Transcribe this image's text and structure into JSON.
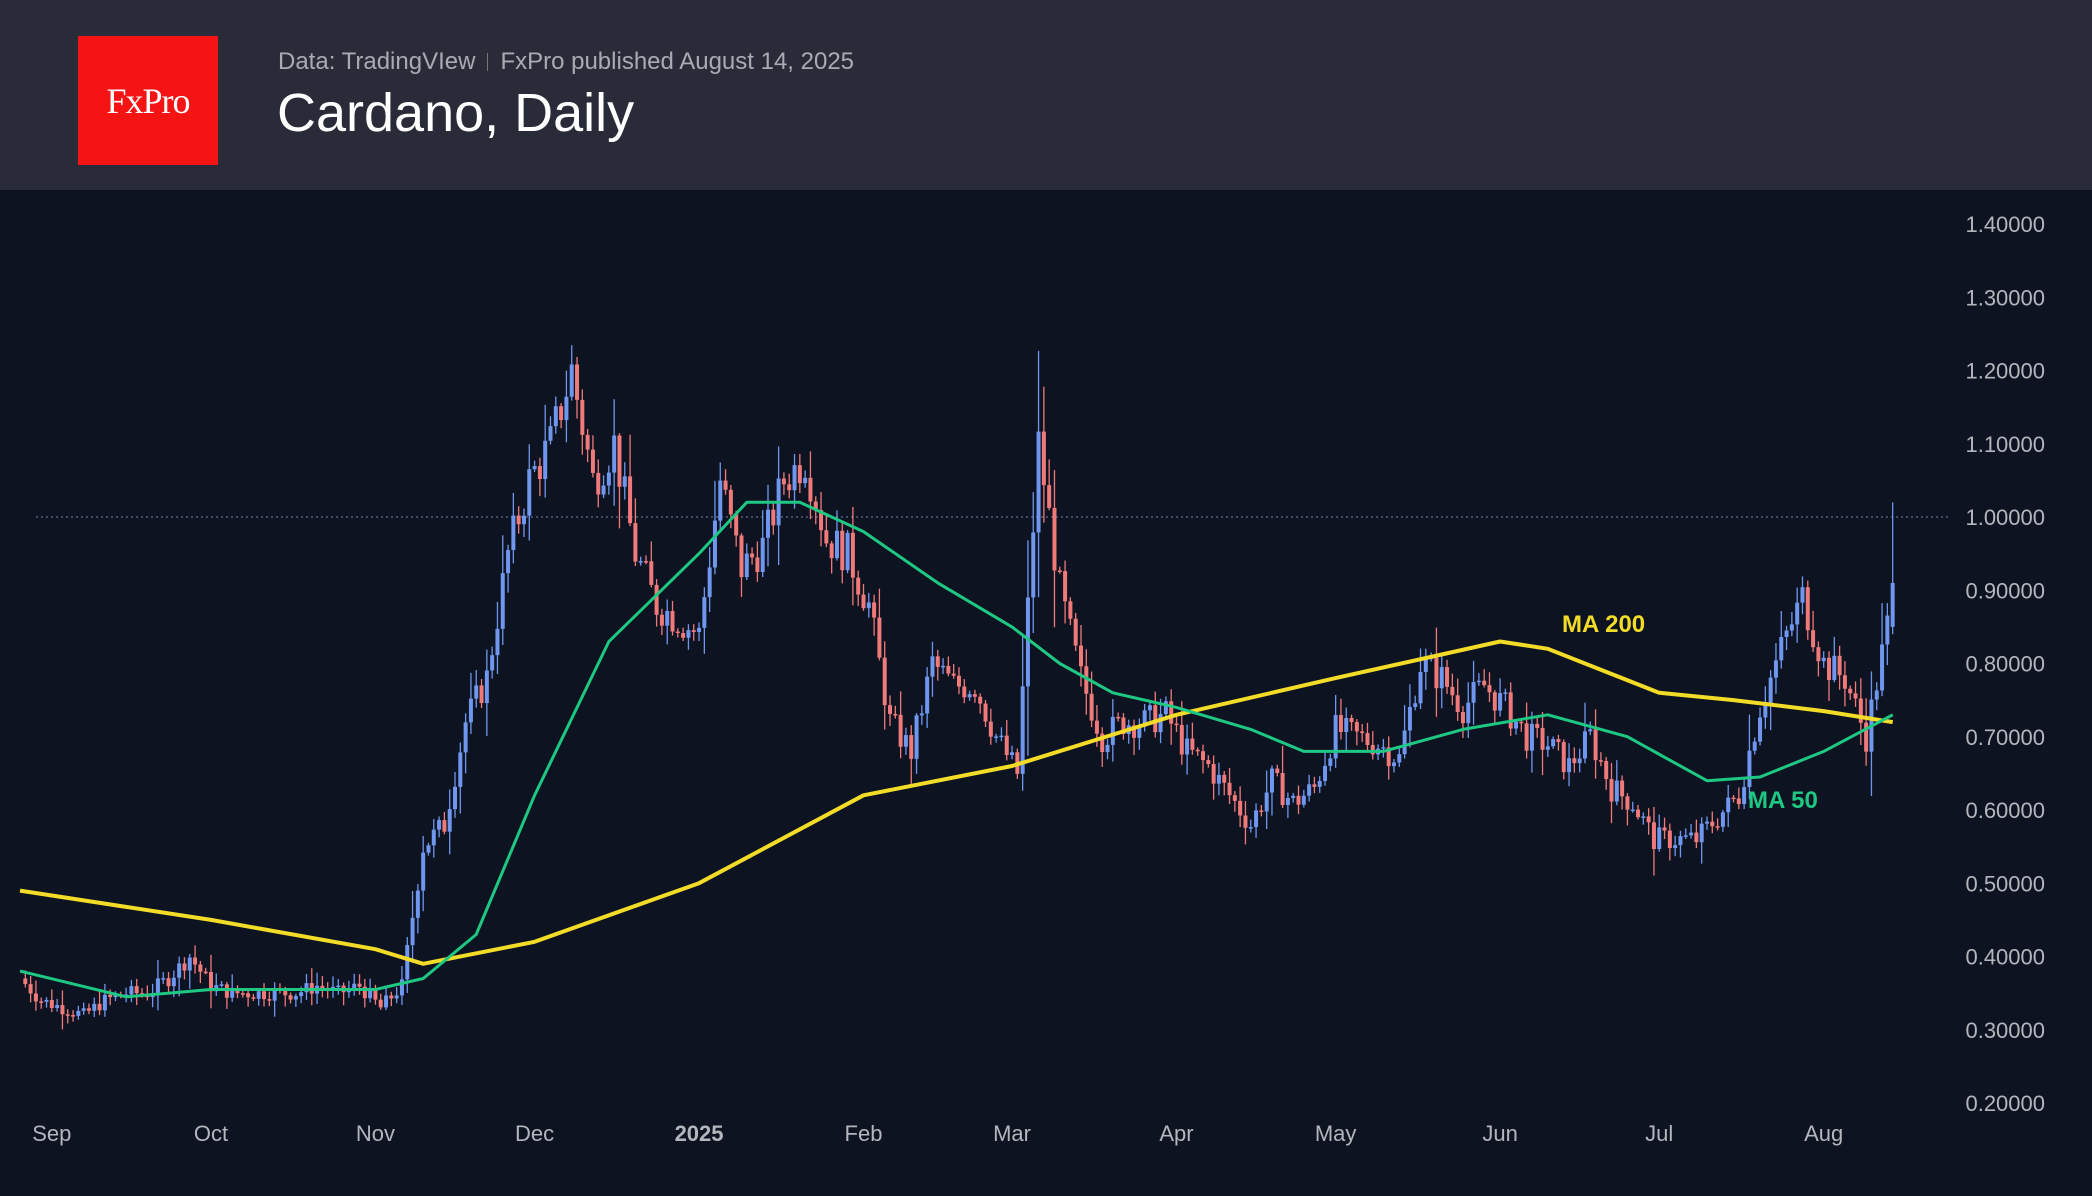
{
  "header": {
    "logo_text": "FxPro",
    "data_source": "Data: TradingVIew",
    "published": "FxPro published August 14, 2025",
    "title": "Cardano, Daily"
  },
  "colors": {
    "up": "#6f97f0",
    "down": "#f07a7a",
    "ma200": "#f2dc28",
    "ma50": "#1ec882",
    "background": "#0d1320",
    "header": "#292c38"
  },
  "chart_data": {
    "type": "candlestick",
    "title": "Cardano, Daily",
    "x_unit": "days since 2024-08-26",
    "x_ticks": [
      {
        "label": "Sep",
        "day": 6
      },
      {
        "label": "Oct",
        "day": 36
      },
      {
        "label": "Nov",
        "day": 67
      },
      {
        "label": "Dec",
        "day": 97
      },
      {
        "label": "2025",
        "day": 128,
        "bold": true
      },
      {
        "label": "Feb",
        "day": 159
      },
      {
        "label": "Mar",
        "day": 187
      },
      {
        "label": "Apr",
        "day": 218
      },
      {
        "label": "May",
        "day": 248
      },
      {
        "label": "Jun",
        "day": 279
      },
      {
        "label": "Jul",
        "day": 309
      },
      {
        "label": "Aug",
        "day": 340
      }
    ],
    "y_ticks": [
      "1.40000",
      "1.30000",
      "1.20000",
      "1.10000",
      "1.00000",
      "0.90000",
      "0.80000",
      "0.70000",
      "0.60000",
      "0.50000",
      "0.40000",
      "0.30000",
      "0.20000"
    ],
    "ylim": [
      0.2,
      1.4
    ],
    "current_price_line": 1.0,
    "close_step_days": 4,
    "closes": [
      0.37,
      0.34,
      0.33,
      0.32,
      0.34,
      0.35,
      0.35,
      0.37,
      0.4,
      0.36,
      0.35,
      0.35,
      0.35,
      0.35,
      0.36,
      0.35,
      0.36,
      0.33,
      0.36,
      0.55,
      0.58,
      0.72,
      0.78,
      0.95,
      1.05,
      1.1,
      1.2,
      1.05,
      1.1,
      0.95,
      0.88,
      0.86,
      0.84,
      1.05,
      0.93,
      0.96,
      1.05,
      1.08,
      0.97,
      0.95,
      0.88,
      0.72,
      0.68,
      0.8,
      0.77,
      0.77,
      0.7,
      0.65,
      1.1,
      0.9,
      0.78,
      0.7,
      0.72,
      0.72,
      0.73,
      0.68,
      0.66,
      0.62,
      0.58,
      0.64,
      0.61,
      0.63,
      0.71,
      0.7,
      0.69,
      0.67,
      0.8,
      0.78,
      0.74,
      0.77,
      0.74,
      0.7,
      0.69,
      0.66,
      0.7,
      0.63,
      0.61,
      0.56,
      0.56,
      0.56,
      0.59,
      0.62,
      0.74,
      0.82,
      0.89,
      0.8,
      0.78,
      0.7,
      0.85
    ],
    "last_close": {
      "day": 353,
      "value": 0.91,
      "high": 1.02
    },
    "series": [
      {
        "name": "MA 200",
        "points": [
          [
            0,
            0.49
          ],
          [
            36,
            0.45
          ],
          [
            67,
            0.41
          ],
          [
            76,
            0.39
          ],
          [
            97,
            0.42
          ],
          [
            128,
            0.5
          ],
          [
            159,
            0.62
          ],
          [
            187,
            0.66
          ],
          [
            218,
            0.73
          ],
          [
            248,
            0.78
          ],
          [
            279,
            0.83
          ],
          [
            288,
            0.82
          ],
          [
            309,
            0.76
          ],
          [
            323,
            0.75
          ],
          [
            340,
            0.735
          ],
          [
            353,
            0.72
          ]
        ]
      },
      {
        "name": "MA 50",
        "points": [
          [
            0,
            0.38
          ],
          [
            20,
            0.345
          ],
          [
            36,
            0.355
          ],
          [
            67,
            0.355
          ],
          [
            76,
            0.37
          ],
          [
            86,
            0.43
          ],
          [
            97,
            0.62
          ],
          [
            111,
            0.83
          ],
          [
            128,
            0.95
          ],
          [
            137,
            1.02
          ],
          [
            147,
            1.02
          ],
          [
            159,
            0.98
          ],
          [
            173,
            0.91
          ],
          [
            187,
            0.85
          ],
          [
            196,
            0.8
          ],
          [
            206,
            0.76
          ],
          [
            218,
            0.74
          ],
          [
            232,
            0.71
          ],
          [
            242,
            0.68
          ],
          [
            257,
            0.68
          ],
          [
            272,
            0.71
          ],
          [
            288,
            0.73
          ],
          [
            303,
            0.7
          ],
          [
            318,
            0.64
          ],
          [
            328,
            0.645
          ],
          [
            340,
            0.68
          ],
          [
            353,
            0.73
          ]
        ]
      }
    ]
  }
}
